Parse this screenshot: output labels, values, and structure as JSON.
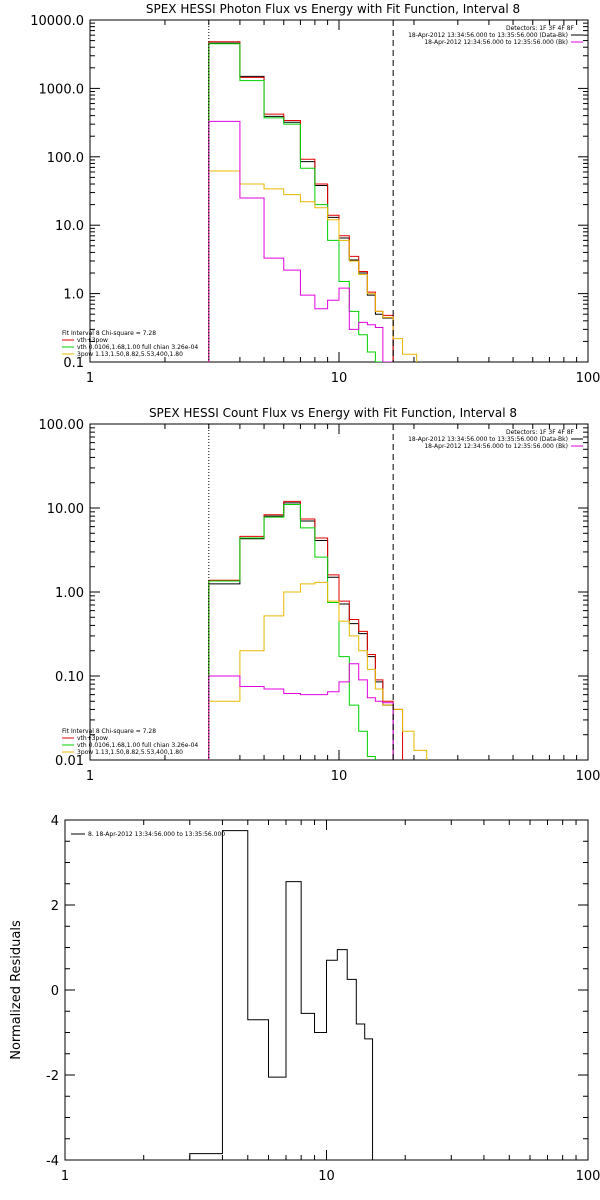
{
  "chart_data": [
    {
      "type": "line",
      "step": true,
      "title": "SPEX HESSI Photon Flux vs Energy with Fit Function, Interval 8",
      "xlabel": "",
      "ylabel": "",
      "xscale": "log",
      "yscale": "log",
      "xlim": [
        1,
        100
      ],
      "ylim": [
        0.1,
        10000
      ],
      "xticks": [
        1,
        10,
        100
      ],
      "xticklabels": [
        "1",
        "10",
        "100"
      ],
      "yticks": [
        0.1,
        1,
        10,
        100,
        1000,
        10000
      ],
      "yticklabels": [
        "0.1",
        "1.0",
        "10.0",
        "100.0",
        "1000.0",
        "10000.0"
      ],
      "vlines": [
        {
          "x": 3.0,
          "style": "dotted"
        },
        {
          "x": 16.5,
          "style": "dashed"
        }
      ],
      "annotation_top_right": [
        "Detectors: 1F 3F 4F 8F"
      ],
      "legend_top_right": [
        {
          "label": "18-Apr-2012 13:34:56.000 to 13:35:56.000 (Data-Bk)",
          "color": "#000000"
        },
        {
          "label": "18-Apr-2012 12:34:56.000 to 12:35:56.000 (Bk)",
          "color": "#e000e0"
        }
      ],
      "legend_bottom_left": [
        {
          "label": "Fit Interval 8   Chi-square = 7.28",
          "color": ""
        },
        {
          "label": "vth+3pow",
          "color": "#e00000"
        },
        {
          "label": "vth 0.0106,1.68,1.00  full chian 3.26e-04",
          "color": "#00d000"
        },
        {
          "label": "3pow 1.13,1.50,8.82,5.53,400,1.80",
          "color": "#e8b800"
        }
      ],
      "edges": [
        3.0,
        4.0,
        5.0,
        6.0,
        7.0,
        8.0,
        9.0,
        10.0,
        11.0,
        12.0,
        13.0,
        14.0,
        15.0,
        16.5
      ],
      "series": [
        {
          "name": "Data-Bk",
          "color": "#000000",
          "edges": [
            3.0,
            4.0,
            5.0,
            6.0,
            7.0,
            8.0,
            9.0,
            10.0,
            11.0,
            12.0,
            13.0,
            14.0,
            15.0,
            16.5
          ],
          "values": [
            4600,
            1500,
            390,
            320,
            85,
            38,
            13,
            6.5,
            3.1,
            2.0,
            0.95,
            0.5,
            0.44
          ]
        },
        {
          "name": "vth+3pow",
          "color": "#e00000",
          "edges": [
            3.0,
            4.0,
            5.0,
            6.0,
            7.0,
            8.0,
            9.0,
            10.0,
            11.0,
            12.0,
            13.0,
            14.0,
            15.0,
            16.5
          ],
          "values": [
            4800,
            1450,
            420,
            340,
            92,
            40,
            14,
            7.0,
            3.5,
            2.1,
            1.05,
            0.55,
            0.48
          ]
        },
        {
          "name": "vth",
          "color": "#00d000",
          "edges": [
            3.0,
            4.0,
            5.0,
            6.0,
            7.0,
            8.0,
            9.0,
            10.0,
            11.0,
            12.0,
            13.0,
            14.0,
            15.0,
            16.5
          ],
          "values": [
            4500,
            1300,
            370,
            300,
            68,
            20,
            6.0,
            1.5,
            0.55,
            0.25,
            0.14,
            0.1,
            0.1
          ]
        },
        {
          "name": "3pow",
          "color": "#e8b800",
          "edges": [
            3.0,
            4.0,
            5.0,
            6.0,
            7.0,
            8.0,
            9.0,
            10.0,
            11.0,
            12.0,
            13.0,
            14.0,
            15.0,
            16.5,
            18.0,
            20.5
          ],
          "values": [
            62,
            40,
            34,
            28,
            22,
            18,
            12,
            6.0,
            3.0,
            1.9,
            1.0,
            0.55,
            0.45,
            0.22,
            0.13
          ]
        },
        {
          "name": "Bk",
          "color": "#e000e0",
          "edges": [
            3.0,
            4.0,
            5.0,
            6.0,
            7.0,
            8.0,
            9.0,
            10.0,
            11.0,
            12.0,
            13.0,
            14.0,
            15.0,
            16.5
          ],
          "values": [
            330,
            25,
            3.3,
            2.2,
            0.95,
            0.6,
            0.8,
            1.2,
            0.3,
            0.38,
            0.35,
            0.32,
            0.1
          ]
        }
      ]
    },
    {
      "type": "line",
      "step": true,
      "title": "SPEX HESSI Count Flux vs Energy with Fit Function, Interval 8",
      "xlabel": "",
      "ylabel": "",
      "xscale": "log",
      "yscale": "log",
      "xlim": [
        1,
        100
      ],
      "ylim": [
        0.01,
        100
      ],
      "xticks": [
        1,
        10,
        100
      ],
      "xticklabels": [
        "1",
        "10",
        "100"
      ],
      "yticks": [
        0.01,
        0.1,
        1,
        10,
        100
      ],
      "yticklabels": [
        "0.01",
        "0.10",
        "1.00",
        "10.00",
        "100.00"
      ],
      "vlines": [
        {
          "x": 3.0,
          "style": "dotted"
        },
        {
          "x": 16.5,
          "style": "dashed"
        }
      ],
      "annotation_top_right": [
        "Detectors: 1F 3F 4F 8F"
      ],
      "legend_top_right": [
        {
          "label": "18-Apr-2012 13:34:56.000 to 13:35:56.000 (Data-Bk)",
          "color": "#000000"
        },
        {
          "label": "18-Apr-2012 12:34:56.000 to 12:35:56.000 (Bk)",
          "color": "#e000e0"
        }
      ],
      "legend_bottom_left": [
        {
          "label": "Fit Interval 8   Chi-square = 7.28",
          "color": ""
        },
        {
          "label": "vth+3pow",
          "color": "#e00000"
        },
        {
          "label": "vth 0.0106,1.68,1.00  full chian 3.26e-04",
          "color": "#00d000"
        },
        {
          "label": "3pow 1.13,1.50,8.82,5.53,400,1.80",
          "color": "#e8b800"
        }
      ],
      "series": [
        {
          "name": "Data-Bk",
          "color": "#000000",
          "edges": [
            3.0,
            4.0,
            5.0,
            6.0,
            7.0,
            8.0,
            9.0,
            10.0,
            11.0,
            12.0,
            13.0,
            14.0,
            15.0,
            16.5
          ],
          "values": [
            1.25,
            4.3,
            8.0,
            11.5,
            7.0,
            4.1,
            1.5,
            0.72,
            0.42,
            0.32,
            0.17,
            0.085,
            0.045
          ]
        },
        {
          "name": "vth+3pow",
          "color": "#e00000",
          "edges": [
            3.0,
            4.0,
            5.0,
            6.0,
            7.0,
            8.0,
            9.0,
            10.0,
            11.0,
            12.0,
            13.0,
            14.0,
            15.0,
            16.5,
            18.0
          ],
          "values": [
            1.38,
            4.6,
            8.3,
            12.0,
            7.4,
            4.4,
            1.6,
            0.78,
            0.47,
            0.34,
            0.18,
            0.09,
            0.05,
            0.04
          ]
        },
        {
          "name": "vth",
          "color": "#00d000",
          "edges": [
            3.0,
            4.0,
            5.0,
            6.0,
            7.0,
            8.0,
            9.0,
            10.0,
            11.0,
            12.0,
            13.0,
            14.0
          ],
          "values": [
            1.35,
            4.4,
            7.8,
            11.0,
            5.8,
            2.6,
            0.75,
            0.17,
            0.045,
            0.022,
            0.011
          ]
        },
        {
          "name": "3pow",
          "color": "#e8b800",
          "edges": [
            3.0,
            4.0,
            5.0,
            6.0,
            7.0,
            8.0,
            9.0,
            10.0,
            11.0,
            12.0,
            13.0,
            14.0,
            15.0,
            16.5,
            18.0,
            20.0,
            22.5
          ],
          "values": [
            0.05,
            0.2,
            0.52,
            1.0,
            1.25,
            1.3,
            0.78,
            0.45,
            0.3,
            0.2,
            0.12,
            0.07,
            0.045,
            0.04,
            0.022,
            0.013
          ]
        },
        {
          "name": "Bk",
          "color": "#e000e0",
          "edges": [
            3.0,
            4.0,
            5.0,
            6.0,
            7.0,
            8.0,
            9.0,
            10.0,
            11.0,
            12.0,
            13.0,
            14.0,
            15.0,
            16.5
          ],
          "values": [
            0.1,
            0.075,
            0.07,
            0.062,
            0.06,
            0.06,
            0.065,
            0.085,
            0.14,
            0.09,
            0.055,
            0.05,
            0.048
          ]
        }
      ]
    },
    {
      "type": "line",
      "step": true,
      "title": "",
      "xlabel": "",
      "ylabel": "Normalized Residuals",
      "xscale": "log",
      "yscale": "linear",
      "xlim": [
        1,
        100
      ],
      "ylim": [
        -4,
        4
      ],
      "xticks": [
        1,
        10,
        100
      ],
      "xticklabels": [
        "1",
        "10",
        "100"
      ],
      "yticks": [
        -4,
        -2,
        0,
        2,
        4
      ],
      "yticklabels": [
        "-4",
        "-2",
        "0",
        "2",
        "4"
      ],
      "legend_top_left": [
        {
          "label": "8. 18-Apr-2012 13:34:56.000 to 13:35:56.000",
          "color": "#000000"
        }
      ],
      "series": [
        {
          "name": "8. 18-Apr-2012 13:34:56.000 to 13:35:56.000",
          "color": "#000000",
          "edges": [
            3.0,
            4.0,
            4.5,
            5.0,
            6.0,
            7.0,
            8.0,
            9.0,
            10.0,
            11.0,
            12.0,
            13.0,
            14.0,
            15.0,
            16.5
          ],
          "values": [
            -3.85,
            3.75,
            3.75,
            -0.7,
            -2.05,
            2.55,
            -0.55,
            -1.0,
            0.7,
            0.95,
            0.25,
            -0.8,
            -1.15,
            -4.0
          ]
        }
      ]
    }
  ]
}
